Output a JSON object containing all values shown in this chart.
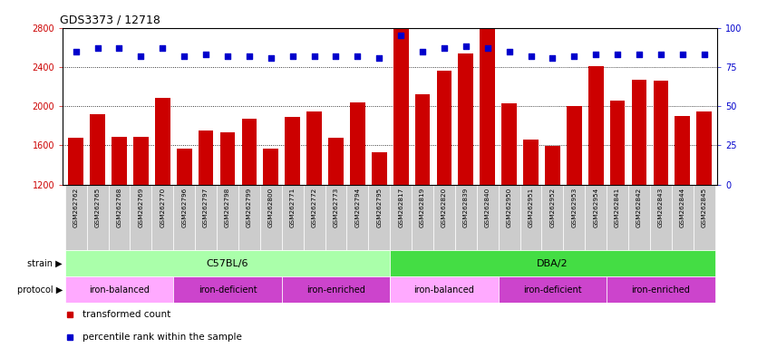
{
  "title": "GDS3373 / 12718",
  "samples": [
    "GSM262762",
    "GSM262765",
    "GSM262768",
    "GSM262769",
    "GSM262770",
    "GSM262796",
    "GSM262797",
    "GSM262798",
    "GSM262799",
    "GSM262800",
    "GSM262771",
    "GSM262772",
    "GSM262773",
    "GSM262794",
    "GSM262795",
    "GSM262817",
    "GSM262819",
    "GSM262820",
    "GSM262839",
    "GSM262840",
    "GSM262950",
    "GSM262951",
    "GSM262952",
    "GSM262953",
    "GSM262954",
    "GSM262841",
    "GSM262842",
    "GSM262843",
    "GSM262844",
    "GSM262845"
  ],
  "bar_values": [
    1680,
    1920,
    1690,
    1690,
    2080,
    1570,
    1750,
    1730,
    1870,
    1570,
    1890,
    1950,
    1680,
    2040,
    1530,
    2790,
    2120,
    2360,
    2540,
    2790,
    2030,
    1660,
    1590,
    2000,
    2410,
    2060,
    2270,
    2260,
    1900,
    1950
  ],
  "percentile_values": [
    85,
    87,
    87,
    82,
    87,
    82,
    83,
    82,
    82,
    81,
    82,
    82,
    82,
    82,
    81,
    95,
    85,
    87,
    88,
    87,
    85,
    82,
    81,
    82,
    83,
    83,
    83,
    83,
    83,
    83
  ],
  "bar_color": "#cc0000",
  "percentile_color": "#0000cc",
  "ylim_left": [
    1200,
    2800
  ],
  "ylim_right": [
    0,
    100
  ],
  "yticks_left": [
    1200,
    1600,
    2000,
    2400,
    2800
  ],
  "yticks_right": [
    0,
    25,
    50,
    75,
    100
  ],
  "grid_values": [
    1600,
    2000,
    2400
  ],
  "strain_groups": [
    {
      "label": "C57BL/6",
      "start": 0,
      "end": 15,
      "color": "#aaffaa"
    },
    {
      "label": "DBA/2",
      "start": 15,
      "end": 30,
      "color": "#44dd44"
    }
  ],
  "protocol_groups": [
    {
      "label": "iron-balanced",
      "start": 0,
      "end": 5,
      "color": "#ffaaff"
    },
    {
      "label": "iron-deficient",
      "start": 5,
      "end": 10,
      "color": "#dd44dd"
    },
    {
      "label": "iron-enriched",
      "start": 10,
      "end": 15,
      "color": "#dd44dd"
    },
    {
      "label": "iron-balanced",
      "start": 15,
      "end": 20,
      "color": "#ffaaff"
    },
    {
      "label": "iron-deficient",
      "start": 20,
      "end": 25,
      "color": "#dd44dd"
    },
    {
      "label": "iron-enriched",
      "start": 25,
      "end": 30,
      "color": "#dd44dd"
    }
  ],
  "legend_items": [
    {
      "label": "transformed count",
      "color": "#cc0000"
    },
    {
      "label": "percentile rank within the sample",
      "color": "#0000cc"
    }
  ],
  "tick_bg": "#cccccc",
  "plot_bg": "#ffffff",
  "fig_bg": "#ffffff",
  "strain_label": "strain",
  "protocol_label": "protocol"
}
